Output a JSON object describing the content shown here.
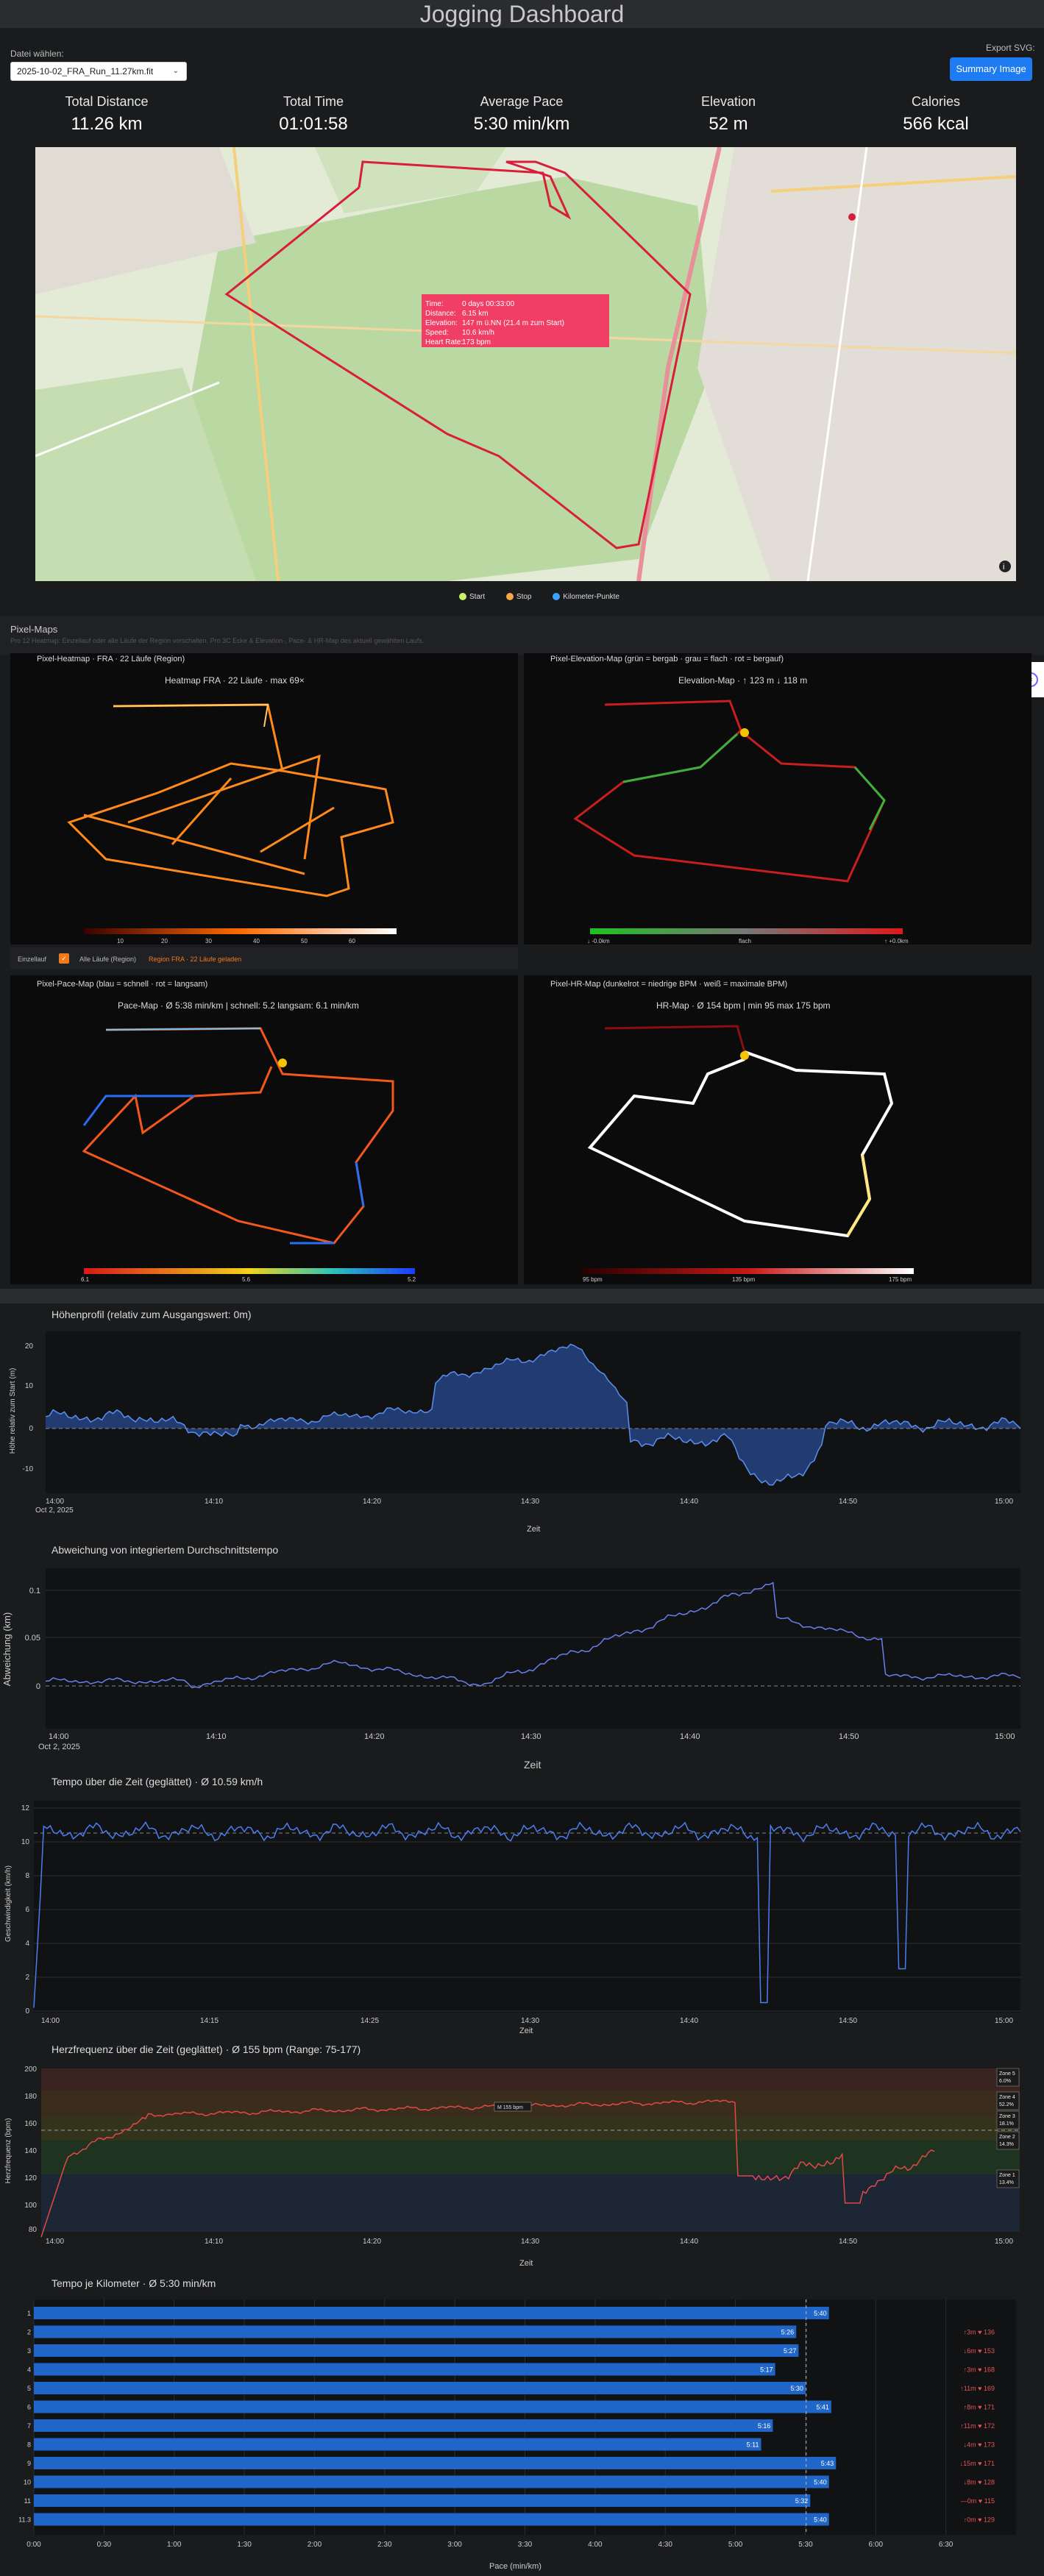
{
  "header": {
    "title": "Jogging Dashboard"
  },
  "file": {
    "label": "Datei wählen:",
    "selected": "2025-10-02_FRA_Run_11.27km.fit"
  },
  "export": {
    "label": "Export SVG:",
    "button": "Summary Image"
  },
  "stats": [
    {
      "title": "Total Distance",
      "value": "11.26 km"
    },
    {
      "title": "Total Time",
      "value": "01:01:58"
    },
    {
      "title": "Average Pace",
      "value": "5:30 min/km"
    },
    {
      "title": "Elevation",
      "value": "52 m"
    },
    {
      "title": "Calories",
      "value": "566 kcal"
    }
  ],
  "map": {
    "tooltip": [
      [
        "Time:",
        "0 days 00:33:00"
      ],
      [
        "Distance:",
        "6.15 km"
      ],
      [
        "Elevation:",
        "147 m ü.NN  (21.4 m zum Start)"
      ],
      [
        "Speed:",
        "10.6 km/h"
      ],
      [
        "Heart Rate:",
        "173 bpm"
      ]
    ],
    "legend": [
      {
        "label": "Start",
        "color": "#c8f06a"
      },
      {
        "label": "Stop",
        "color": "#f5a64a"
      },
      {
        "label": "Kilometer-Punkte",
        "color": "#3aa3ff"
      }
    ]
  },
  "pixelmaps": {
    "title": "Pixel-Maps",
    "desc": "Pro 12 Heatmap: Einzellauf oder alle Läufe der Region vorschalten. Pro 3C Ecke & Elevation-, Pace- & HR-Map des aktuell gewählten Laufs.",
    "heatmap": {
      "panel_title": "Pixel-Heatmap · FRA · 22 Läufe (Region)",
      "title": "Heatmap FRA · 22 Läufe · max 69×",
      "scale": [
        "10",
        "20",
        "30",
        "40",
        "50",
        "60"
      ]
    },
    "elevation": {
      "panel_title": "Pixel-Elevation-Map (grün = bergab · grau = flach · rot = bergauf)",
      "title": "Elevation-Map · ↑ 123 m  ↓ 118 m",
      "scale": [
        "↓ -0.0km",
        "flach",
        "↑ +0.0km"
      ]
    },
    "options": {
      "single": "Einzellauf",
      "all": "Alle Läufe (Region)",
      "region": "Region FRA · 22 Läufe geladen"
    },
    "pace": {
      "panel_title": "Pixel-Pace-Map (blau = schnell · rot = langsam)",
      "title": "Pace-Map · Ø 5:38 min/km  |  schnell: 5.2  langsam: 6.1 min/km",
      "scale": [
        "6.1",
        "5.6",
        "5.2"
      ]
    },
    "hr": {
      "panel_title": "Pixel-HR-Map (dunkelrot = niedrige BPM · weiß = maximale BPM)",
      "title": "HR-Map · Ø 154 bpm  |  min 95  max 175 bpm",
      "scale": [
        "95 bpm",
        "135 bpm",
        "175 bpm"
      ]
    }
  },
  "elev_chart": {
    "title": "Höhenprofil (relativ zum Ausgangswert: 0m)",
    "ylabel": "Höhe relativ zum Start (m)",
    "xlabel": "Zeit",
    "yticks": [
      "20",
      "10",
      "0",
      "-10"
    ],
    "xticks": [
      "14:00",
      "14:10",
      "14:20",
      "14:30",
      "14:40",
      "14:50",
      "15:00"
    ],
    "date": "Oct 2, 2025"
  },
  "dev_chart": {
    "title": "Abweichung von integriertem Durchschnittstempo",
    "ylabel": "Abweichung (km)",
    "xlabel": "Zeit",
    "yticks": [
      "0.1",
      "0.05",
      "0"
    ],
    "xticks": [
      "14:00",
      "14:10",
      "14:20",
      "14:30",
      "14:40",
      "14:50",
      "15:00"
    ],
    "date": "Oct 2, 2025"
  },
  "speed_chart": {
    "title": "Tempo über die Zeit (geglättet) · Ø 10.59 km/h",
    "ylabel": "Geschwindigkeit (km/h)",
    "xlabel": "Zeit",
    "yticks": [
      "12",
      "10",
      "8",
      "6",
      "4",
      "2",
      "0"
    ],
    "xticks": [
      "14:00",
      "14:15",
      "14:25",
      "14:30",
      "14:40",
      "14:50",
      "15:00"
    ]
  },
  "hr_chart": {
    "title": "Herzfrequenz über die Zeit (geglättet) · Ø 155 bpm (Range: 75-177)",
    "ylabel": "Herzfrequenz (bpm)",
    "xlabel": "Zeit",
    "yticks": [
      "200",
      "180",
      "160",
      "140",
      "120",
      "100",
      "80"
    ],
    "xticks": [
      "14:00",
      "14:10",
      "14:20",
      "14:30",
      "14:40",
      "14:50",
      "15:00"
    ],
    "peak": "M 155 bpm",
    "zones": [
      {
        "label": "Zone 5",
        "pct": "6.0%"
      },
      {
        "label": "Zone 4",
        "pct": "52.2%"
      },
      {
        "label": "Zone 3",
        "pct": "18.1%"
      },
      {
        "label": "Zone 2",
        "pct": "14.3%"
      },
      {
        "label": "Zone 1",
        "pct": "13.4%"
      }
    ]
  },
  "pace_chart": {
    "title": "Tempo je Kilometer · Ø 5:30 min/km",
    "xlabel": "Pace (min/km)",
    "xticks": [
      "0:00",
      "0:30",
      "1:00",
      "1:30",
      "2:00",
      "2:30",
      "3:00",
      "3:30",
      "4:00",
      "4:30",
      "5:00",
      "5:30",
      "6:00",
      "6:30"
    ],
    "rows": [
      {
        "km": "1",
        "pace": "5:40",
        "sec": 340,
        "side": ""
      },
      {
        "km": "2",
        "pace": "5:26",
        "sec": 326,
        "side": "↑3m ♥ 136"
      },
      {
        "km": "3",
        "pace": "5:27",
        "sec": 327,
        "side": "↓6m ♥ 153"
      },
      {
        "km": "4",
        "pace": "5:17",
        "sec": 317,
        "side": "↑3m ♥ 168"
      },
      {
        "km": "5",
        "pace": "5:30",
        "sec": 330,
        "side": "↑11m ♥ 169"
      },
      {
        "km": "6",
        "pace": "5:41",
        "sec": 341,
        "side": "↑8m ♥ 171"
      },
      {
        "km": "7",
        "pace": "5:16",
        "sec": 316,
        "side": "↑11m ♥ 172"
      },
      {
        "km": "8",
        "pace": "5:11",
        "sec": 311,
        "side": "↓4m ♥ 173"
      },
      {
        "km": "9",
        "pace": "5:43",
        "sec": 343,
        "side": "↓15m ♥ 171"
      },
      {
        "km": "10",
        "pace": "5:40",
        "sec": 340,
        "side": "↓8m ♥ 128"
      },
      {
        "km": "11",
        "pace": "5:32",
        "sec": 332,
        "side": "—0m ♥ 115"
      },
      {
        "km": "11.3",
        "pace": "5:40",
        "sec": 340,
        "side": "↑0m ♥ 129"
      }
    ]
  }
}
